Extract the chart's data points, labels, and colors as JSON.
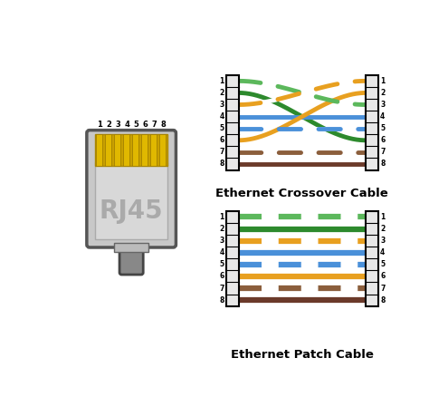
{
  "bg_color": "#ffffff",
  "title_patch": "Ethernet Patch Cable",
  "title_crossover": "Ethernet Crossover Cable",
  "wire_colors": [
    {
      "main": "#5cb85c",
      "type": "striped"
    },
    {
      "main": "#2d8a2d",
      "type": "solid"
    },
    {
      "main": "#e8a020",
      "type": "striped"
    },
    {
      "main": "#4a90d9",
      "type": "solid"
    },
    {
      "main": "#4a90d9",
      "type": "striped"
    },
    {
      "main": "#e8a020",
      "type": "solid"
    },
    {
      "main": "#8b5e3c",
      "type": "striped"
    },
    {
      "main": "#6b3a2a",
      "type": "solid"
    }
  ],
  "crossover_map": [
    3,
    6,
    1,
    4,
    5,
    2,
    7,
    8
  ]
}
